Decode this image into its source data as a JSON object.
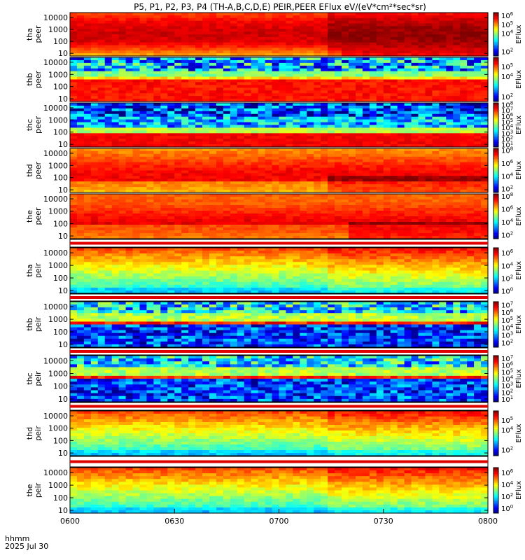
{
  "title": "P5, P1, P2, P3, P4 (TH-A,B,C,D,E) PEIR,PEER EFlux eV/(eV*cm²*sec*sr)",
  "xaxis": {
    "label_line1": "hhmm",
    "label_line2": "2025 Jul 30",
    "range": [
      "0600",
      "0800"
    ],
    "ticks": [
      {
        "value": 0,
        "label": "0600"
      },
      {
        "value": 30,
        "label": "0630"
      },
      {
        "value": 60,
        "label": "0700"
      },
      {
        "value": 90,
        "label": "0730"
      },
      {
        "value": 120,
        "label": "0800"
      }
    ]
  },
  "yaxis": {
    "scale": "log",
    "range": [
      6,
      25000
    ],
    "unit": "eV"
  },
  "colorbar_label": "EFlux",
  "chart_data": [
    {
      "type": "heatmap",
      "probe": "tha",
      "species": "peer",
      "y_ticks": [
        "10",
        "100",
        "1000",
        "10000"
      ],
      "cbar_ticks": [
        {
          "base": "10",
          "exp": "2"
        },
        {
          "base": "10",
          "exp": "4"
        },
        {
          "base": "10",
          "exp": "5"
        },
        {
          "base": "10",
          "exp": "6"
        }
      ],
      "cbar_range_exp": [
        1.5,
        6.3
      ]
    },
    {
      "type": "heatmap",
      "probe": "thb",
      "species": "peer",
      "y_ticks": [
        "10",
        "100",
        "1000",
        "10000"
      ],
      "cbar_ticks": [
        {
          "base": "10",
          "exp": "2"
        },
        {
          "base": "10",
          "exp": "4"
        },
        {
          "base": "10",
          "exp": "5"
        }
      ],
      "cbar_range_exp": [
        1.5,
        5.9
      ]
    },
    {
      "type": "heatmap",
      "probe": "thc",
      "species": "peer",
      "y_ticks": [
        "10",
        "100",
        "1000",
        "10000"
      ],
      "cbar_ticks": [
        {
          "base": "10",
          "exp": "1"
        },
        {
          "base": "10",
          "exp": "2"
        },
        {
          "base": "10",
          "exp": "3"
        },
        {
          "base": "10",
          "exp": "4"
        },
        {
          "base": "10",
          "exp": "5"
        },
        {
          "base": "10",
          "exp": "6"
        },
        {
          "base": "10",
          "exp": "7"
        },
        {
          "base": "10",
          "exp": "8"
        }
      ],
      "cbar_range_exp": [
        0.6,
        8.3
      ]
    },
    {
      "type": "heatmap",
      "probe": "thd",
      "species": "peer",
      "y_ticks": [
        "10",
        "100",
        "1000",
        "10000"
      ],
      "cbar_ticks": [
        {
          "base": "10",
          "exp": "2"
        },
        {
          "base": "10",
          "exp": "4"
        },
        {
          "base": "10",
          "exp": "6"
        },
        {
          "base": "10",
          "exp": "8"
        }
      ],
      "cbar_range_exp": [
        1.4,
        8.3
      ]
    },
    {
      "type": "heatmap",
      "probe": "the",
      "species": "peer",
      "y_ticks": [
        "10",
        "100",
        "1000",
        "10000"
      ],
      "cbar_ticks": [
        {
          "base": "10",
          "exp": "2"
        },
        {
          "base": "10",
          "exp": "4"
        },
        {
          "base": "10",
          "exp": "6"
        },
        {
          "base": "10",
          "exp": "8"
        }
      ],
      "cbar_range_exp": [
        1.4,
        8.3
      ]
    },
    {
      "type": "heatmap",
      "probe": "tha",
      "species": "peir",
      "y_ticks": [
        "10",
        "100",
        "1000",
        "10000"
      ],
      "cbar_ticks": [
        {
          "base": "10",
          "exp": "0"
        },
        {
          "base": "10",
          "exp": "2"
        },
        {
          "base": "10",
          "exp": "4"
        },
        {
          "base": "10",
          "exp": "6"
        }
      ],
      "cbar_range_exp": [
        -0.4,
        6.8
      ]
    },
    {
      "type": "heatmap",
      "probe": "thb",
      "species": "peir",
      "y_ticks": [
        "10",
        "100",
        "1000",
        "10000"
      ],
      "cbar_ticks": [
        {
          "base": "10",
          "exp": "2"
        },
        {
          "base": "10",
          "exp": "3"
        },
        {
          "base": "10",
          "exp": "4"
        },
        {
          "base": "10",
          "exp": "5"
        },
        {
          "base": "10",
          "exp": "6"
        },
        {
          "base": "10",
          "exp": "7"
        }
      ],
      "cbar_range_exp": [
        1.4,
        7.4
      ]
    },
    {
      "type": "heatmap",
      "probe": "thc",
      "species": "peir",
      "y_ticks": [
        "10",
        "100",
        "1000",
        "10000"
      ],
      "cbar_ticks": [
        {
          "base": "10",
          "exp": "1"
        },
        {
          "base": "10",
          "exp": "2"
        },
        {
          "base": "10",
          "exp": "3"
        },
        {
          "base": "10",
          "exp": "4"
        },
        {
          "base": "10",
          "exp": "5"
        },
        {
          "base": "10",
          "exp": "6"
        },
        {
          "base": "10",
          "exp": "7"
        }
      ],
      "cbar_range_exp": [
        0.6,
        7.4
      ]
    },
    {
      "type": "heatmap",
      "probe": "thd",
      "species": "peir",
      "y_ticks": [
        "10",
        "100",
        "1000",
        "10000"
      ],
      "cbar_ticks": [
        {
          "base": "10",
          "exp": "2"
        },
        {
          "base": "10",
          "exp": "4"
        },
        {
          "base": "10",
          "exp": "5"
        }
      ],
      "cbar_range_exp": [
        1.4,
        5.9
      ]
    },
    {
      "type": "heatmap",
      "probe": "the",
      "species": "peir",
      "y_ticks": [
        "10",
        "100",
        "1000",
        "10000"
      ],
      "cbar_ticks": [
        {
          "base": "10",
          "exp": "0"
        },
        {
          "base": "10",
          "exp": "2"
        },
        {
          "base": "10",
          "exp": "4"
        },
        {
          "base": "10",
          "exp": "6"
        }
      ],
      "cbar_range_exp": [
        -0.8,
        6.8
      ]
    }
  ]
}
